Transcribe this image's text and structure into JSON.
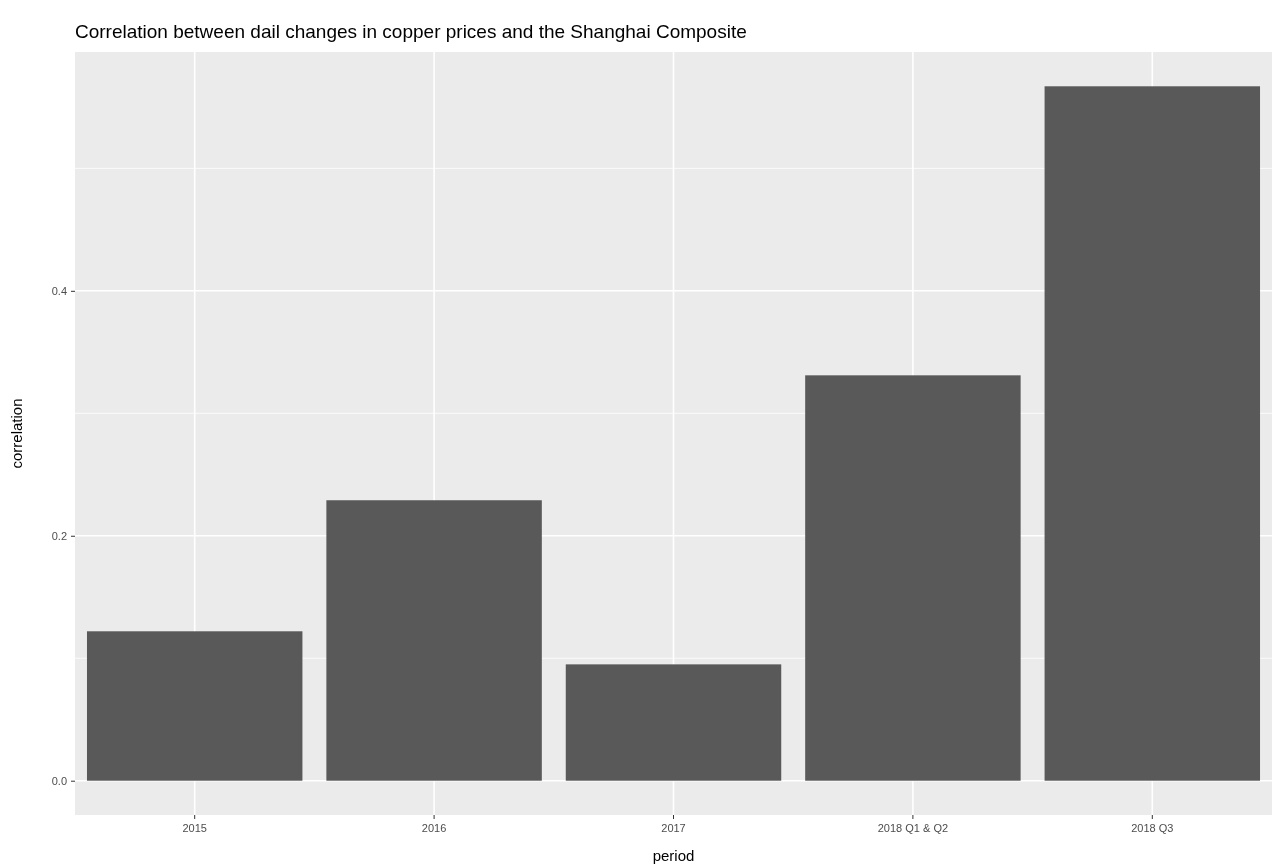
{
  "chart_data": {
    "type": "bar",
    "title": "Correlation between dail changes in copper prices and the Shanghai Composite",
    "xlabel": "period",
    "ylabel": "correlation",
    "categories": [
      "2015",
      "2016",
      "2017",
      "2018 Q1 & Q2",
      "2018 Q3"
    ],
    "values": [
      0.122,
      0.229,
      0.095,
      0.331,
      0.567
    ],
    "color": "#595959",
    "ylim": [
      -0.028,
      0.595
    ],
    "yticks": [
      {
        "value": 0,
        "label": "0.0"
      },
      {
        "value": 0.1,
        "label": null
      },
      {
        "value": 0.2,
        "label": "0.2"
      },
      {
        "value": 0.3,
        "label": null
      },
      {
        "value": 0.4,
        "label": "0.4"
      },
      {
        "value": 0.5,
        "label": null
      }
    ],
    "grid": true
  }
}
